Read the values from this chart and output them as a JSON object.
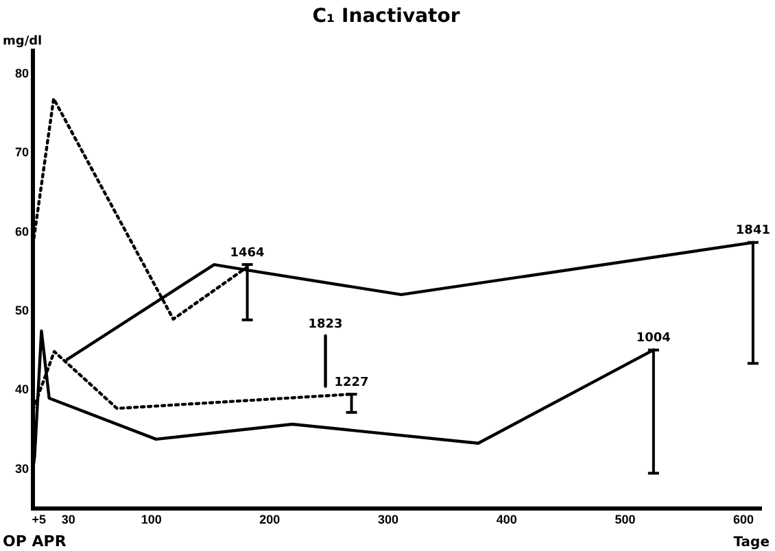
{
  "chart_data": {
    "type": "line",
    "title": "C₁ Inactivator",
    "xlabel": "Tage",
    "ylabel": "mg/dl",
    "xlim": [
      0,
      615
    ],
    "ylim": [
      25,
      83
    ],
    "xticks": [
      {
        "value": 5,
        "label": "+5"
      },
      30,
      100,
      200,
      300,
      400,
      500,
      600
    ],
    "yticks": [
      30,
      40,
      50,
      60,
      70,
      80
    ],
    "grid": false,
    "legend": false,
    "marker": "none",
    "series": [
      {
        "color": "#000000",
        "line_style": "solid",
        "x": [
          0,
          1.4,
          7.2,
          13.7,
          104,
          219,
          376,
          524
        ],
        "values": [
          30,
          31.6,
          47.5,
          39,
          33.8,
          35.7,
          33.3,
          45.1
        ],
        "errors": [
          null,
          null,
          null,
          null,
          null,
          null,
          null,
          [
            29.5,
            45.1
          ]
        ]
      },
      {
        "color": "#000000",
        "line_style": "solid",
        "x": [
          29,
          153,
          181,
          311,
          608
        ],
        "values": [
          43.9,
          55.9,
          55.2,
          52.1,
          58.7
        ],
        "errors": [
          null,
          null,
          [
            48.9,
            55.9
          ],
          null,
          [
            43.4,
            58.7
          ]
        ]
      },
      {
        "color": "#000000",
        "line_style": "dotted",
        "x": [
          0,
          17.5,
          118.5,
          181
        ],
        "values": [
          58.4,
          76.9,
          49,
          55.6
        ]
      },
      {
        "color": "#000000",
        "line_style": "dotted",
        "x": [
          0,
          18,
          71,
          269
        ],
        "values": [
          37.5,
          44.9,
          37.7,
          39.5
        ],
        "errors": [
          null,
          null,
          null,
          [
            37.2,
            39.5
          ]
        ]
      },
      {
        "color": "#000000",
        "line_style": "solid",
        "x": [
          247,
          247
        ],
        "values": [
          40.5,
          46.9
        ]
      }
    ],
    "annotations": [
      {
        "text": "1464",
        "x": 181,
        "y": 55.9
      },
      {
        "text": "1823",
        "x": 247,
        "y": 46.9
      },
      {
        "text": "1227",
        "x": 269,
        "y": 39.5
      },
      {
        "text": "1004",
        "x": 524,
        "y": 45.1
      },
      {
        "text": "1841",
        "x": 608,
        "y": 58.7
      },
      "OP APR"
    ]
  }
}
